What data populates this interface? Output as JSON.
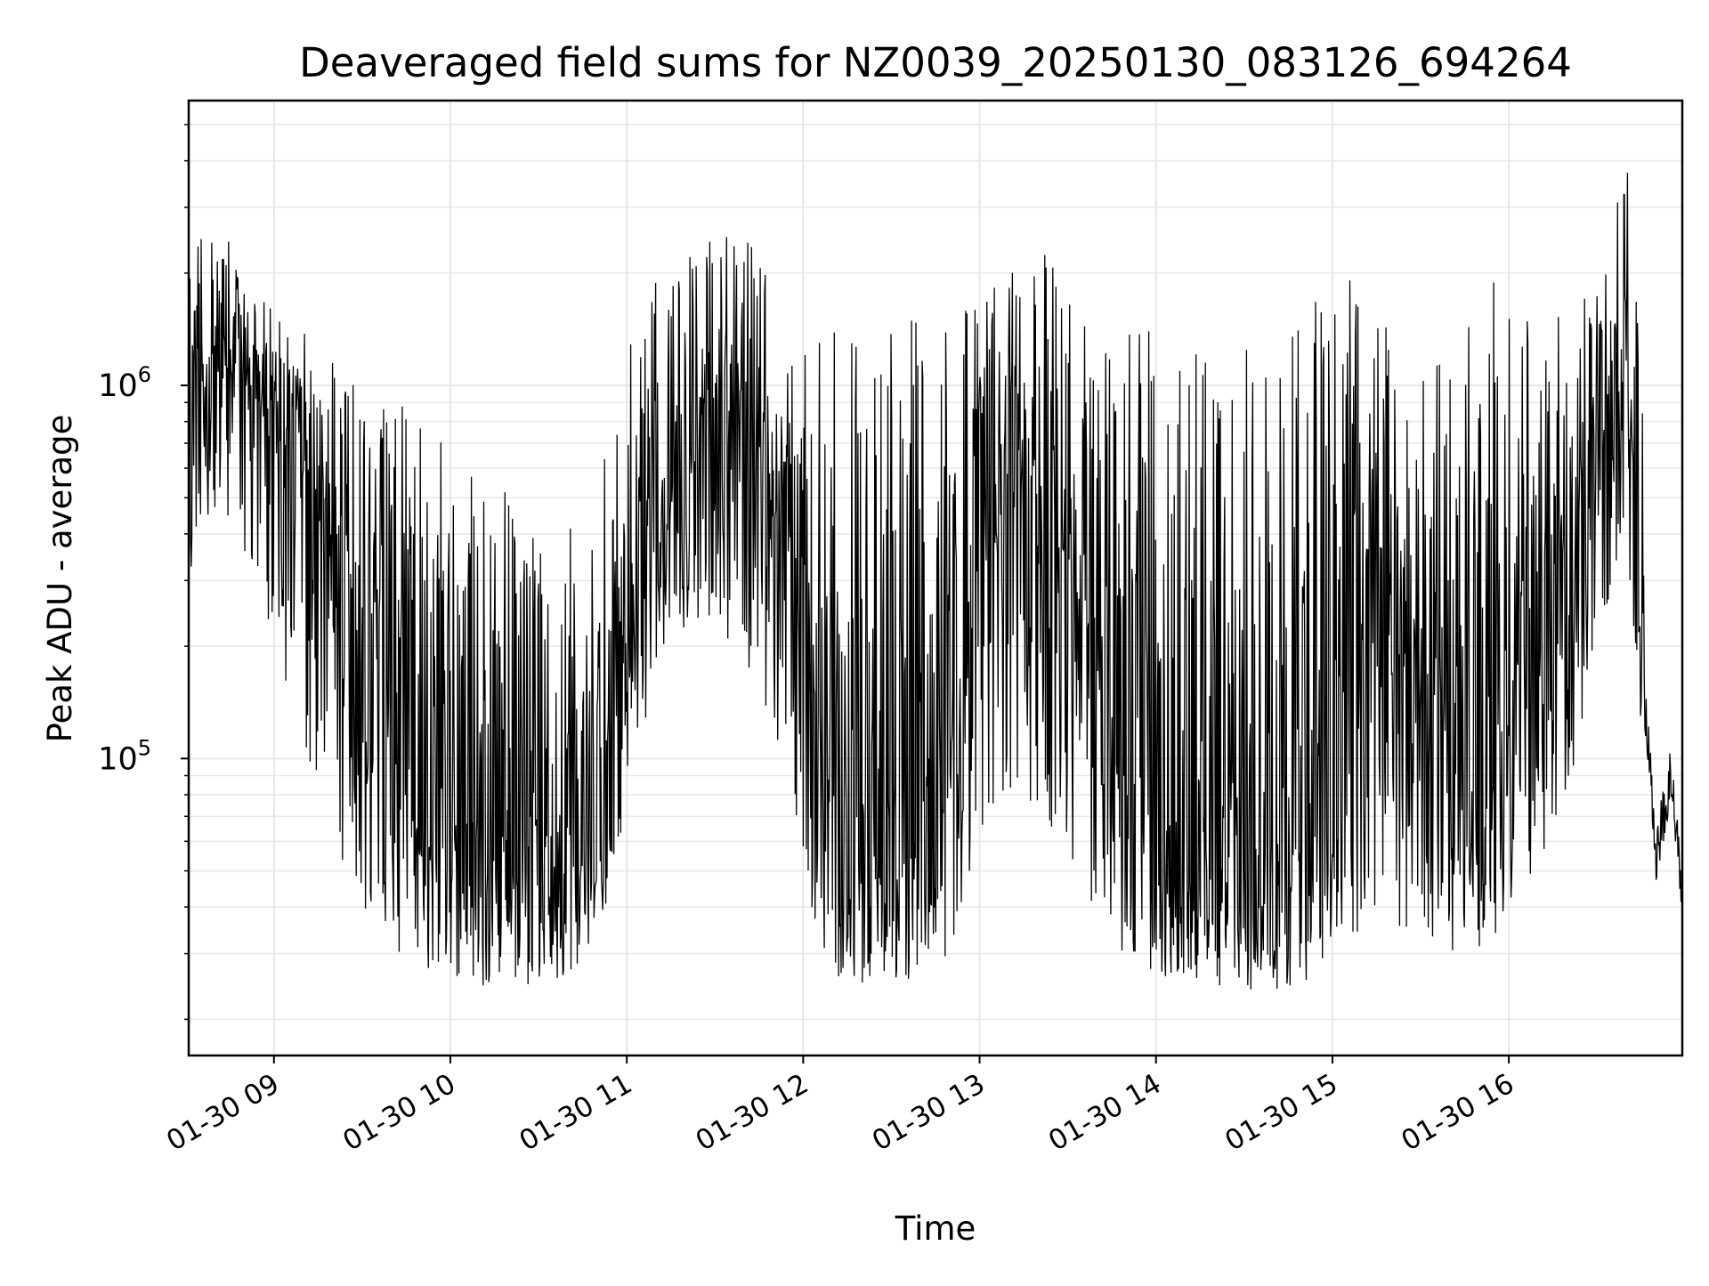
{
  "chart_data": {
    "type": "line",
    "title": "Deaveraged field sums for NZ0039_20250130_083126_694264",
    "xlabel": "Time",
    "ylabel": "Peak ADU - average",
    "yscale": "log",
    "ylim": [
      16000,
      5800000
    ],
    "xlim": [
      "2025-01-30 08:31",
      "2025-01-30 16:59"
    ],
    "grid": true,
    "line_color": "#000000",
    "x_ticks": [
      "01-30 09",
      "01-30 10",
      "01-30 11",
      "01-30 12",
      "01-30 13",
      "01-30 14",
      "01-30 15",
      "01-30 16"
    ],
    "y_ticks": [
      {
        "base": "10",
        "exp": "5",
        "value": 100000
      },
      {
        "base": "10",
        "exp": "6",
        "value": 1000000
      }
    ],
    "series": [
      {
        "x": [
          "2025-01-30 08:31",
          "2025-01-30 08:40",
          "2025-01-30 08:50",
          "2025-01-30 09:00",
          "2025-01-30 09:10",
          "2025-01-30 09:20",
          "2025-01-30 09:30",
          "2025-01-30 09:40",
          "2025-01-30 09:50",
          "2025-01-30 10:00",
          "2025-01-30 10:10",
          "2025-01-30 10:20",
          "2025-01-30 10:30",
          "2025-01-30 10:40",
          "2025-01-30 10:50",
          "2025-01-30 11:00",
          "2025-01-30 11:10",
          "2025-01-30 11:20",
          "2025-01-30 11:30",
          "2025-01-30 11:40",
          "2025-01-30 11:50",
          "2025-01-30 12:00",
          "2025-01-30 12:10",
          "2025-01-30 12:20",
          "2025-01-30 12:30",
          "2025-01-30 12:40",
          "2025-01-30 12:50",
          "2025-01-30 13:00",
          "2025-01-30 13:10",
          "2025-01-30 13:20",
          "2025-01-30 13:30",
          "2025-01-30 13:40",
          "2025-01-30 13:50",
          "2025-01-30 14:00",
          "2025-01-30 14:10",
          "2025-01-30 14:20",
          "2025-01-30 14:30",
          "2025-01-30 14:40",
          "2025-01-30 14:50",
          "2025-01-30 15:00",
          "2025-01-30 15:10",
          "2025-01-30 15:20",
          "2025-01-30 15:30",
          "2025-01-30 15:40",
          "2025-01-30 15:50",
          "2025-01-30 16:00",
          "2025-01-30 16:10",
          "2025-01-30 16:20",
          "2025-01-30 16:30",
          "2025-01-30 16:40",
          "2025-01-30 16:45",
          "2025-01-30 16:50",
          "2025-01-30 16:55",
          "2025-01-30 16:59"
        ],
        "y": [
          900000,
          1100000,
          1000000,
          700000,
          600000,
          400000,
          200000,
          100000,
          70000,
          50000,
          45000,
          45000,
          45000,
          50000,
          60000,
          200000,
          350000,
          600000,
          800000,
          700000,
          500000,
          300000,
          45000,
          50000,
          50000,
          60000,
          80000,
          300000,
          500000,
          500000,
          300000,
          200000,
          80000,
          50000,
          45000,
          40000,
          40000,
          45000,
          50000,
          60000,
          200000,
          200000,
          150000,
          100000,
          60000,
          150000,
          200000,
          350000,
          700000,
          900000,
          200000,
          55000,
          90000,
          45000
        ],
        "y_low": [
          300000,
          450000,
          350000,
          200000,
          110000,
          60000,
          38000,
          30000,
          27000,
          25000,
          24000,
          24000,
          25000,
          26000,
          30000,
          70000,
          150000,
          220000,
          200000,
          160000,
          100000,
          40000,
          26000,
          25000,
          25000,
          26000,
          30000,
          60000,
          80000,
          70000,
          50000,
          35000,
          27000,
          26000,
          25000,
          24000,
          24000,
          24000,
          25000,
          30000,
          30000,
          35000,
          33000,
          30000,
          28000,
          40000,
          50000,
          80000,
          200000,
          400000,
          120000,
          42000,
          40000,
          40000
        ],
        "y_high": [
          2200000,
          3000000,
          1900000,
          1600000,
          1500000,
          1200000,
          1000000,
          900000,
          1000000,
          800000,
          700000,
          500000,
          400000,
          450000,
          600000,
          1300000,
          2000000,
          2200000,
          2500000,
          2800000,
          1800000,
          1300000,
          1400000,
          1400000,
          1600000,
          1600000,
          1500000,
          1700000,
          2000000,
          2400000,
          1800000,
          1600000,
          1500000,
          1500000,
          1500000,
          1500000,
          1400000,
          1500000,
          1500000,
          2600000,
          1600000,
          1500000,
          1400000,
          1500000,
          2400000,
          1600000,
          1600000,
          1700000,
          2000000,
          4600000,
          1100000,
          110000,
          120000,
          90000
        ]
      }
    ]
  }
}
